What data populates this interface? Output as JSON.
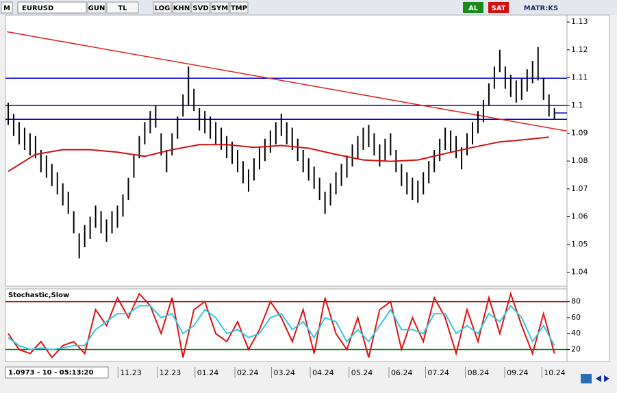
{
  "toolbar": {
    "logo": "M",
    "symbol": "EURUSD",
    "buttons": [
      "GUN",
      "TL",
      "LOG",
      "KHN",
      "SVD",
      "SYM",
      "TMP"
    ],
    "buy": "AL",
    "sell": "SAT",
    "brand": "MATR:KS"
  },
  "status": "1.0973 - 10 - 05:13:20",
  "chart_data": [
    {
      "type": "ohlc",
      "color": "#000000",
      "xlim": [
        -0.5,
        102.3
      ],
      "xticks": [
        {
          "value": 20.1,
          "label": "11.23"
        },
        {
          "value": 27.3,
          "label": "12.23"
        },
        {
          "value": 34.2,
          "label": "01.24"
        },
        {
          "value": 41.5,
          "label": "02.24"
        },
        {
          "value": 48.2,
          "label": "03.24"
        },
        {
          "value": 55.3,
          "label": "04.24"
        },
        {
          "value": 62.4,
          "label": "05.24"
        },
        {
          "value": 69.7,
          "label": "06.24"
        },
        {
          "value": 76.4,
          "label": "07.24"
        },
        {
          "value": 83.7,
          "label": "08.24"
        },
        {
          "value": 90.9,
          "label": "09.24"
        },
        {
          "value": 97.7,
          "label": "10.24"
        }
      ],
      "ylim": [
        1.035,
        1.1325
      ],
      "yticks": [
        1.04,
        1.05,
        1.06,
        1.07,
        1.08,
        1.09,
        1.1,
        1.11,
        1.12,
        1.13
      ],
      "high": [
        1.101,
        1.097,
        1.094,
        1.092,
        1.09,
        1.089,
        1.084,
        1.082,
        1.079,
        1.076,
        1.072,
        1.069,
        1.062,
        1.054,
        1.057,
        1.06,
        1.064,
        1.062,
        1.059,
        1.062,
        1.064,
        1.068,
        1.074,
        1.082,
        1.089,
        1.094,
        1.098,
        1.1,
        1.09,
        1.084,
        1.09,
        1.096,
        1.104,
        1.114,
        1.106,
        1.099,
        1.098,
        1.096,
        1.094,
        1.092,
        1.089,
        1.087,
        1.084,
        1.08,
        1.077,
        1.081,
        1.085,
        1.088,
        1.091,
        1.094,
        1.097,
        1.094,
        1.092,
        1.088,
        1.084,
        1.081,
        1.078,
        1.074,
        1.069,
        1.072,
        1.076,
        1.079,
        1.082,
        1.086,
        1.089,
        1.092,
        1.093,
        1.09,
        1.086,
        1.088,
        1.09,
        1.084,
        1.079,
        1.076,
        1.074,
        1.073,
        1.076,
        1.08,
        1.084,
        1.088,
        1.092,
        1.091,
        1.089,
        1.085,
        1.09,
        1.094,
        1.098,
        1.102,
        1.108,
        1.114,
        1.12,
        1.114,
        1.111,
        1.109,
        1.11,
        1.113,
        1.116,
        1.121,
        1.11,
        1.104,
        1.099
      ],
      "low": [
        1.093,
        1.089,
        1.086,
        1.084,
        1.082,
        1.081,
        1.076,
        1.074,
        1.071,
        1.068,
        1.064,
        1.061,
        1.054,
        1.045,
        1.049,
        1.052,
        1.056,
        1.054,
        1.051,
        1.054,
        1.056,
        1.06,
        1.066,
        1.074,
        1.081,
        1.086,
        1.09,
        1.092,
        1.082,
        1.076,
        1.082,
        1.088,
        1.096,
        1.1,
        1.098,
        1.091,
        1.09,
        1.088,
        1.086,
        1.084,
        1.081,
        1.079,
        1.076,
        1.072,
        1.069,
        1.073,
        1.077,
        1.08,
        1.083,
        1.086,
        1.089,
        1.086,
        1.084,
        1.08,
        1.076,
        1.073,
        1.07,
        1.066,
        1.061,
        1.064,
        1.068,
        1.071,
        1.074,
        1.078,
        1.081,
        1.084,
        1.085,
        1.082,
        1.078,
        1.08,
        1.082,
        1.076,
        1.071,
        1.068,
        1.066,
        1.065,
        1.068,
        1.072,
        1.076,
        1.08,
        1.084,
        1.083,
        1.081,
        1.077,
        1.082,
        1.086,
        1.09,
        1.094,
        1.1,
        1.106,
        1.112,
        1.106,
        1.103,
        1.101,
        1.102,
        1.105,
        1.108,
        1.109,
        1.102,
        1.096,
        1.095
      ],
      "ma": {
        "color": "#d01010",
        "x": [
          0,
          5,
          10,
          15,
          20,
          25,
          30,
          35,
          40,
          45,
          50,
          55,
          60,
          65,
          70,
          75,
          80,
          85,
          90,
          95,
          99
        ],
        "values": [
          1.0763,
          1.0824,
          1.0841,
          1.0841,
          1.0832,
          1.0817,
          1.0841,
          1.0859,
          1.0859,
          1.0849,
          1.0856,
          1.0846,
          1.0824,
          1.0804,
          1.0799,
          1.0804,
          1.0827,
          1.0849,
          1.0869,
          1.0878,
          1.0886
        ]
      },
      "levels": {
        "color": "#0000c0",
        "values": [
          1.1098,
          1.1,
          1.095
        ]
      },
      "trendline": {
        "color": "#e02020",
        "x": [
          -0.25,
          102.3
        ],
        "values": [
          1.1265,
          1.0908
        ]
      },
      "last": 1.0973
    },
    {
      "type": "line",
      "title": "Stochastic,Slow",
      "ylim": [
        5,
        96
      ],
      "yticks": [
        20,
        40,
        60,
        80
      ],
      "levels": [
        {
          "value": 80,
          "color": "#900000"
        },
        {
          "value": 20,
          "color": "#008000"
        }
      ],
      "series": [
        {
          "color": "#e01010",
          "x": [
            0,
            2,
            4,
            6,
            8,
            10,
            12,
            14,
            16,
            18,
            20,
            22,
            24,
            26,
            28,
            30,
            32,
            34,
            36,
            38,
            40,
            42,
            44,
            46,
            48,
            50,
            52,
            54,
            56,
            58,
            60,
            62,
            64,
            66,
            68,
            70,
            72,
            74,
            76,
            78,
            80,
            82,
            84,
            86,
            88,
            90,
            92,
            94,
            96,
            98,
            100
          ],
          "values": [
            40,
            20,
            15,
            30,
            10,
            25,
            30,
            15,
            70,
            50,
            85,
            60,
            90,
            75,
            40,
            85,
            10,
            70,
            80,
            40,
            30,
            55,
            20,
            45,
            80,
            60,
            30,
            70,
            15,
            85,
            40,
            20,
            60,
            10,
            70,
            80,
            20,
            60,
            30,
            85,
            60,
            15,
            70,
            30,
            85,
            40,
            90,
            50,
            15,
            65,
            15
          ]
        },
        {
          "color": "#30c8e0",
          "x": [
            0,
            2,
            4,
            6,
            8,
            10,
            12,
            14,
            16,
            18,
            20,
            22,
            24,
            26,
            28,
            30,
            32,
            34,
            36,
            38,
            40,
            42,
            44,
            46,
            48,
            50,
            52,
            54,
            56,
            58,
            60,
            62,
            64,
            66,
            68,
            70,
            72,
            74,
            76,
            78,
            80,
            82,
            84,
            86,
            88,
            90,
            92,
            94,
            96,
            98,
            100
          ],
          "values": [
            35,
            25,
            20,
            22,
            20,
            22,
            25,
            25,
            45,
            55,
            65,
            65,
            75,
            75,
            60,
            65,
            40,
            50,
            70,
            60,
            40,
            45,
            35,
            40,
            60,
            65,
            45,
            55,
            35,
            60,
            55,
            30,
            45,
            30,
            50,
            70,
            45,
            45,
            40,
            65,
            65,
            40,
            50,
            40,
            65,
            55,
            75,
            60,
            30,
            50,
            25
          ]
        }
      ]
    }
  ]
}
